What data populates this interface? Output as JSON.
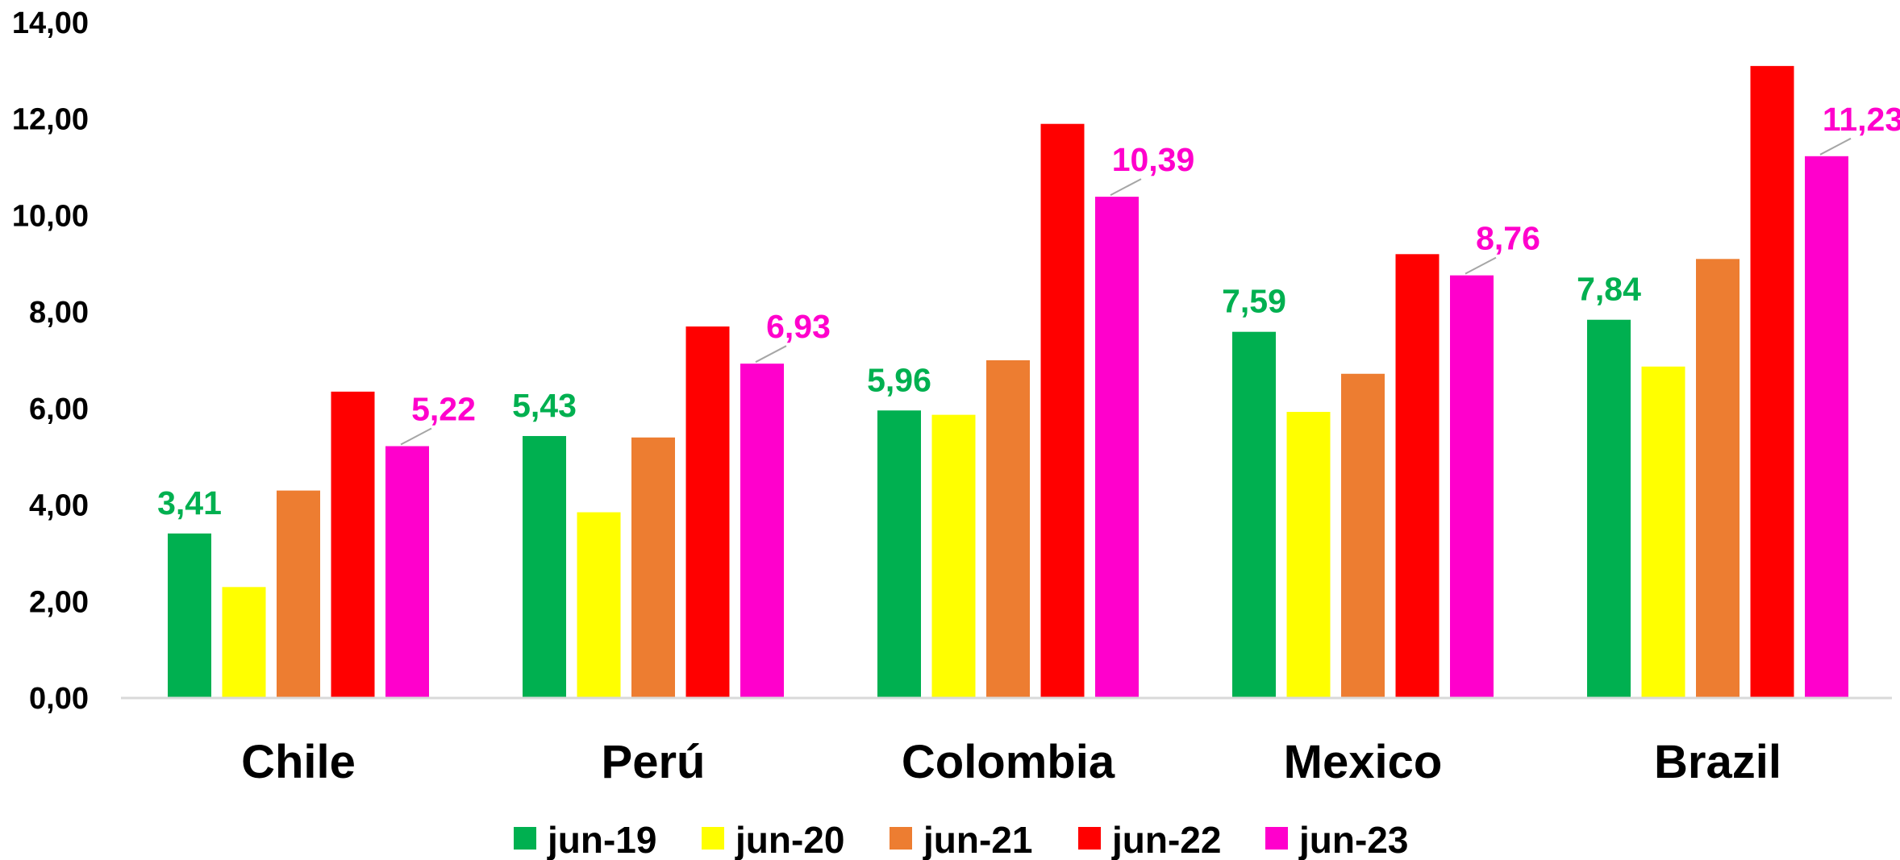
{
  "chart_data": {
    "type": "bar",
    "categories": [
      "Chile",
      "Perú",
      "Colombia",
      "Mexico",
      "Brazil"
    ],
    "series": [
      {
        "name": "jun-19",
        "color": "#00b050",
        "values": [
          3.41,
          5.43,
          5.96,
          7.59,
          7.84
        ],
        "labels": [
          "3,41",
          "5,43",
          "5,96",
          "7,59",
          "7,84"
        ]
      },
      {
        "name": "jun-20",
        "color": "#ffff00",
        "values": [
          2.3,
          3.85,
          5.87,
          5.93,
          6.87
        ],
        "labels": null
      },
      {
        "name": "jun-21",
        "color": "#ed7d31",
        "values": [
          4.3,
          5.4,
          7.0,
          6.72,
          9.1
        ],
        "labels": null
      },
      {
        "name": "jun-22",
        "color": "#ff0000",
        "values": [
          6.35,
          7.7,
          11.9,
          9.2,
          13.1
        ],
        "labels": null
      },
      {
        "name": "jun-23",
        "color": "#ff00cc",
        "values": [
          5.22,
          6.93,
          10.39,
          8.76,
          11.23
        ],
        "labels": [
          "5,22",
          "6,93",
          "10,39",
          "8,76",
          "11,23"
        ]
      }
    ],
    "ylim": [
      0,
      14
    ],
    "yticks": [
      "0,00",
      "2,00",
      "4,00",
      "6,00",
      "8,00",
      "10,00",
      "12,00",
      "14,00"
    ],
    "grid": false,
    "legend_position": "bottom",
    "xlabel": "",
    "ylabel": ""
  }
}
